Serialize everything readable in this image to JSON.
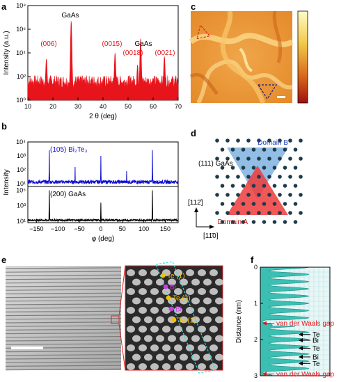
{
  "panels": {
    "a": "a",
    "b": "b",
    "c": "c",
    "d": "d",
    "e": "e",
    "f": "f"
  },
  "chart_data": [
    {
      "id": "a",
      "type": "line",
      "xlabel": "2 θ (deg)",
      "ylabel": "Intensity (a.u.)",
      "xlim": [
        10,
        70
      ],
      "ylim_log10": [
        0,
        8
      ],
      "x_ticks": [
        "10",
        "20",
        "30",
        "40",
        "50",
        "60",
        "70"
      ],
      "y_ticks": [
        "10⁰",
        "10²",
        "10⁴",
        "10⁶",
        "10⁸"
      ],
      "color": "#e8141b",
      "peaks": [
        {
          "x": 17.4,
          "log_y": 3.5
        },
        {
          "x": 27.3,
          "log_y": 6.7
        },
        {
          "x": 44.8,
          "log_y": 4.0
        },
        {
          "x": 53.8,
          "log_y": 3.0
        },
        {
          "x": 55.0,
          "log_y": 5.2
        },
        {
          "x": 64.5,
          "log_y": 3.7
        }
      ],
      "annotations": [
        {
          "text": "(006)",
          "color": "#e8141b"
        },
        {
          "text": "GaAs",
          "color": "#000000"
        },
        {
          "text": "(0015)",
          "color": "#e8141b"
        },
        {
          "text": "GaAs",
          "color": "#000000"
        },
        {
          "text": "(0018)",
          "color": "#e8141b"
        },
        {
          "text": "(0021)",
          "color": "#e8141b"
        }
      ]
    },
    {
      "id": "b",
      "type": "line",
      "xlabel": "φ (deg)",
      "ylabel": "Intensity",
      "xlim": [
        -170,
        180
      ],
      "x_ticks": [
        "−150",
        "−100",
        "−50",
        "0",
        "50",
        "100",
        "150"
      ],
      "y_ticks_top": [
        "10¹",
        "10²",
        "10³",
        "10⁴"
      ],
      "y_ticks_bottom": [
        "10¹",
        "10³",
        "10⁵"
      ],
      "series": [
        {
          "name": "(105) Bi₂Te₃",
          "color": "#1010d0",
          "peaks": [
            {
              "x": -120,
              "log_y": 3.4
            },
            {
              "x": -60,
              "log_y": 2.2
            },
            {
              "x": 0,
              "log_y": 3.0
            },
            {
              "x": 60,
              "log_y": 1.9
            },
            {
              "x": 120,
              "log_y": 3.4
            }
          ]
        },
        {
          "name": "(200) GaAs",
          "color": "#000000",
          "peaks": [
            {
              "x": -120,
              "log_y": 5.0
            },
            {
              "x": 0,
              "log_y": 3.4
            },
            {
              "x": 120,
              "log_y": 5.0
            }
          ]
        }
      ]
    },
    {
      "id": "f",
      "type": "area",
      "ylabel": "Distance (nm)",
      "ylim": [
        0,
        3
      ],
      "y_ticks": [
        "0",
        "1",
        "2",
        "3"
      ],
      "color": "#3bbfb2",
      "annotations": [
        {
          "text": "van der Waals gap",
          "color": "#e8141b"
        },
        {
          "text": "Te",
          "color": "#000000"
        },
        {
          "text": "Bi",
          "color": "#000000"
        },
        {
          "text": "Te",
          "color": "#000000"
        },
        {
          "text": "Bi",
          "color": "#000000"
        },
        {
          "text": "Te",
          "color": "#000000"
        },
        {
          "text": "van der Waals gap",
          "color": "#e8141b"
        }
      ]
    }
  ],
  "panel_d": {
    "label_gaas": "(111) GaAs",
    "domain_a": "Domain A",
    "domain_b": "Domain B",
    "dir_vertical": "[112̄]",
    "dir_horizontal": "[11̄0]",
    "domain_a_color": "#ef3b3b",
    "domain_b_color": "#7fb2e0",
    "domain_b_text_color": "#1f3fb0",
    "domain_a_text_color": "#c01010"
  },
  "panel_e": {
    "atom_labels": [
      "Te (1)",
      "Bi",
      "Te (2)",
      "Bi",
      "Te (1)"
    ],
    "atom_colors": [
      "#f2c100",
      "#c040e0",
      "#f2c100",
      "#c040e0",
      "#f2c100"
    ]
  }
}
